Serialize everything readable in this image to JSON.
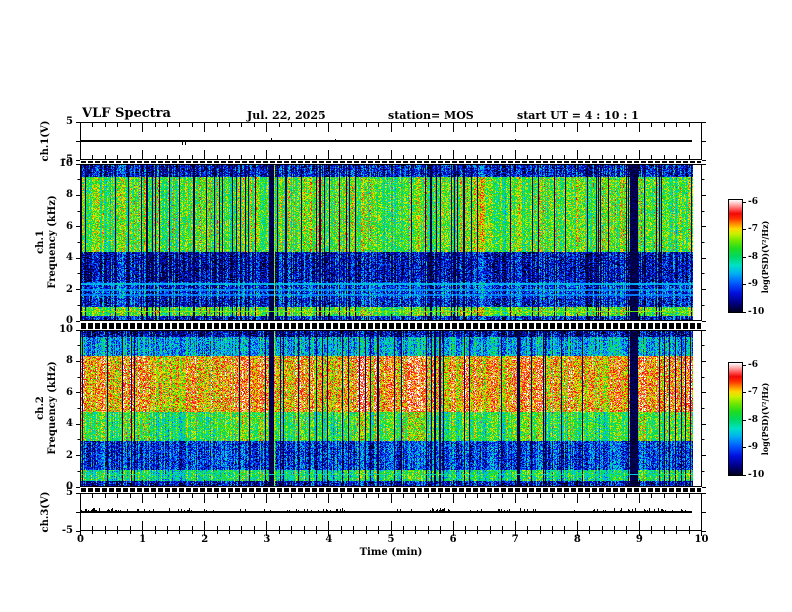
{
  "header": {
    "title": "VLF Spectra",
    "date": "Jul. 22, 2025",
    "station": "station= MOS",
    "start_ut": "start UT =  4 : 10 : 1"
  },
  "x_axis": {
    "label": "Time (min)",
    "min": 0,
    "max": 10,
    "major_ticks": [
      0,
      1,
      2,
      3,
      4,
      5,
      6,
      7,
      8,
      9,
      10
    ],
    "minor_step": 0.2
  },
  "panels": [
    {
      "name": "ch1-voltage",
      "type": "wave",
      "channel_label": "ch.1(V)",
      "y_tick_labels": [
        5,
        -5
      ],
      "ymin": -5,
      "ymax": 5
    },
    {
      "name": "ch1-spectrogram",
      "type": "spec",
      "channel_label": "ch.1",
      "ylabel": "Frequency (kHz)",
      "y_tick_labels": [
        10,
        8,
        6,
        4,
        2,
        0
      ],
      "ymin": 0,
      "ymax": 10
    },
    {
      "name": "ch2-spectrogram",
      "type": "spec",
      "channel_label": "ch.2",
      "ylabel": "Frequency (kHz)",
      "y_tick_labels": [
        10,
        8,
        6,
        4,
        2,
        0
      ],
      "ymin": 0,
      "ymax": 10
    },
    {
      "name": "ch3-voltage",
      "type": "wave",
      "channel_label": "ch.3(V)",
      "y_tick_labels": [
        5,
        -5
      ],
      "ymin": -5,
      "ymax": 5
    }
  ],
  "colormap": {
    "label": "log(PSD)(V²/Hz)",
    "ticks": [
      -6,
      -7,
      -8,
      -9,
      -10
    ],
    "min": -10,
    "max": -6,
    "stops": [
      [
        0.0,
        "#000014"
      ],
      [
        0.09,
        "#000085"
      ],
      [
        0.18,
        "#0010e0"
      ],
      [
        0.27,
        "#0060ff"
      ],
      [
        0.35,
        "#00b0f0"
      ],
      [
        0.42,
        "#00e0c8"
      ],
      [
        0.5,
        "#00d860"
      ],
      [
        0.57,
        "#20dc20"
      ],
      [
        0.64,
        "#70e800"
      ],
      [
        0.7,
        "#c8f000"
      ],
      [
        0.745,
        "#ffd800"
      ],
      [
        0.79,
        "#ff8800"
      ],
      [
        0.835,
        "#ff3000"
      ],
      [
        0.88,
        "#f00808"
      ],
      [
        0.92,
        "#ff5858"
      ],
      [
        0.96,
        "#ffb0b0"
      ],
      [
        1.0,
        "#ffffff"
      ]
    ]
  },
  "chart_data": [
    {
      "id": "ch1_voltage",
      "type": "line",
      "channel_label": "ch.1(V)",
      "xlim": [
        0,
        10
      ],
      "ylim": [
        -5,
        5
      ],
      "baseline_v": 0,
      "data_end_min": 9.85,
      "marks": [
        {
          "t": 1.63,
          "dir": "below",
          "len": 3
        },
        {
          "t": 1.67,
          "dir": "below",
          "len": 3
        },
        {
          "t": 3.06,
          "dir": "above",
          "len": 2
        },
        {
          "t": 4.1,
          "dir": "above",
          "len": 1
        },
        {
          "t": 7.0,
          "dir": "above",
          "len": 1
        }
      ]
    },
    {
      "id": "ch1_spectrogram",
      "type": "heatmap",
      "channel_label": "ch.1",
      "ylabel": "Frequency (kHz)",
      "xlim": [
        0,
        10
      ],
      "ylim": [
        0,
        10
      ],
      "zlim": [
        -10,
        -6
      ],
      "data_end_min": 9.85,
      "freq_bands": [
        {
          "f0": 0.0,
          "f1": 0.25,
          "log_psd": -9.4
        },
        {
          "f0": 0.25,
          "f1": 0.85,
          "log_psd": -8.05
        },
        {
          "f0": 0.85,
          "f1": 1.45,
          "log_psd": -9.5
        },
        {
          "f0": 1.45,
          "f1": 2.45,
          "log_psd": -9.3
        },
        {
          "f0": 2.45,
          "f1": 4.4,
          "log_psd": -9.65
        },
        {
          "f0": 4.4,
          "f1": 9.25,
          "log_psd": -8.05
        },
        {
          "f0": 9.25,
          "f1": 10.0,
          "log_psd": -9.55
        }
      ],
      "horizontal_lines": [
        {
          "f": 0.55,
          "log_psd": -7.5
        },
        {
          "f": 1.6,
          "log_psd": -8.85
        },
        {
          "f": 1.95,
          "log_psd": -8.8
        },
        {
          "f": 2.3,
          "log_psd": -8.6
        }
      ],
      "speck_bands": [
        {
          "f0": 0.25,
          "f1": 0.85,
          "p": 0.035,
          "log_psd": -7.2
        },
        {
          "f0": 4.4,
          "f1": 9.25,
          "p": 0.012,
          "log_psd": -7.0
        }
      ],
      "dropout_min": [
        [
          3.02,
          3.1
        ],
        [
          8.84,
          8.97
        ]
      ],
      "bright_line_min": 3.12,
      "env_boost": 0.3,
      "gap_prob": 0.1
    },
    {
      "id": "ch2_spectrogram",
      "type": "heatmap",
      "channel_label": "ch.2",
      "ylabel": "Frequency (kHz)",
      "xlim": [
        0,
        10
      ],
      "ylim": [
        0,
        10
      ],
      "zlim": [
        -10,
        -6
      ],
      "data_end_min": 9.85,
      "freq_bands": [
        {
          "f0": 0.0,
          "f1": 0.35,
          "log_psd": -9.6
        },
        {
          "f0": 0.35,
          "f1": 1.05,
          "log_psd": -8.55
        },
        {
          "f0": 1.05,
          "f1": 2.9,
          "log_psd": -9.35
        },
        {
          "f0": 2.9,
          "f1": 4.8,
          "log_psd": -8.3
        },
        {
          "f0": 4.8,
          "f1": 8.4,
          "log_psd": -7.4
        },
        {
          "f0": 8.4,
          "f1": 9.6,
          "log_psd": -8.85
        },
        {
          "f0": 9.6,
          "f1": 10.0,
          "log_psd": -9.7
        }
      ],
      "horizontal_lines": [
        {
          "f": 0.75,
          "log_psd": -8.45
        }
      ],
      "speck_bands": [
        {
          "f0": 4.8,
          "f1": 8.4,
          "p": 0.02,
          "log_psd": -6.75
        },
        {
          "f0": 2.9,
          "f1": 4.8,
          "p": 0.008,
          "log_psd": -7.3
        }
      ],
      "dropout_min": [
        [
          3.02,
          3.1
        ],
        [
          8.84,
          8.97
        ]
      ],
      "bright_line_min": 3.12,
      "env_boost": 0.55,
      "gap_prob": 0.08
    },
    {
      "id": "ch3_voltage",
      "type": "line",
      "channel_label": "ch.3(V)",
      "xlim": [
        0,
        10
      ],
      "ylim": [
        -5,
        5
      ],
      "baseline_v": 0,
      "data_end_min": 9.85,
      "noise_regions": [
        {
          "t0": 0.0,
          "t1": 1.05,
          "density": 0.5
        },
        {
          "t0": 1.4,
          "t1": 2.15,
          "density": 0.35
        },
        {
          "t0": 2.5,
          "t1": 4.65,
          "density": 0.18
        },
        {
          "t0": 5.3,
          "t1": 6.0,
          "density": 0.4
        },
        {
          "t0": 6.7,
          "t1": 7.4,
          "density": 0.35
        },
        {
          "t0": 8.2,
          "t1": 9.8,
          "density": 0.28
        }
      ],
      "base_density": 0.05
    }
  ]
}
